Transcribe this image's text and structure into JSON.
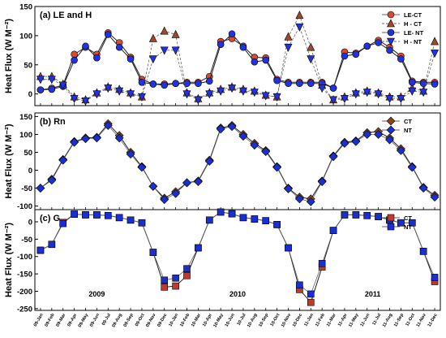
{
  "figure": {
    "year_labels": [
      "2009",
      "2010",
      "2011"
    ],
    "x_tick_labels": [
      "09-Jan",
      "09-Feb",
      "09-Mar",
      "09-Apr",
      "09-May",
      "09-Jun",
      "09-Jul",
      "09-Aug",
      "09-Sep",
      "09-Oct",
      "09-Nov",
      "09-Dec",
      "10-Jan",
      "10-Feb",
      "10-Mar",
      "10-Apr",
      "10-May",
      "10-Jun",
      "10-Jul",
      "10-Aug",
      "10-Sep",
      "10-Oct",
      "10-Nov",
      "10-Dec",
      "11-Jan",
      "11-Feb",
      "11-Mar",
      "11-Apr",
      "11-May",
      "11-Jun",
      "11-Jul",
      "11-Aug",
      "11-Sep",
      "11-Oct",
      "11-Nov",
      "11-Dec"
    ]
  },
  "chart_data": [
    {
      "type": "line",
      "panel_label": "(a) LE and H",
      "ylabel": "Heat Flux (W M⁻²)",
      "ylim": [
        -20,
        150
      ],
      "yticks": [
        0,
        50,
        100,
        150
      ],
      "legend_position": "top-right",
      "series": [
        {
          "name": "LE-CT",
          "marker": "circle",
          "color": "#c0392b",
          "values": [
            7,
            10,
            15,
            68,
            80,
            68,
            105,
            88,
            63,
            25,
            17,
            17,
            18,
            20,
            20,
            30,
            90,
            95,
            82,
            63,
            62,
            25,
            20,
            20,
            20,
            20,
            10,
            72,
            70,
            82,
            92,
            80,
            65,
            22,
            20,
            20
          ]
        },
        {
          "name": "H - CT",
          "marker": "triangle-up",
          "color": "#8b3a2a",
          "values": [
            30,
            30,
            17,
            -5,
            -10,
            2,
            12,
            8,
            2,
            -5,
            95,
            108,
            102,
            2,
            -8,
            2,
            8,
            12,
            8,
            5,
            -2,
            -5,
            98,
            135,
            80,
            15,
            -10,
            -5,
            2,
            5,
            2,
            -5,
            -5,
            10,
            5,
            90
          ]
        },
        {
          "name": "LE- NT",
          "marker": "circle",
          "color": "#1a2fd1",
          "values": [
            7,
            8,
            13,
            58,
            82,
            62,
            102,
            80,
            60,
            20,
            17,
            15,
            18,
            18,
            18,
            22,
            85,
            103,
            80,
            55,
            58,
            23,
            18,
            18,
            18,
            18,
            10,
            65,
            68,
            82,
            88,
            75,
            60,
            20,
            18,
            17
          ]
        },
        {
          "name": "H - NT",
          "marker": "triangle-down",
          "color": "#1a2fd1",
          "values": [
            25,
            25,
            15,
            -8,
            -12,
            0,
            10,
            5,
            0,
            -5,
            60,
            75,
            75,
            0,
            -10,
            0,
            5,
            10,
            5,
            3,
            -3,
            -5,
            80,
            115,
            60,
            10,
            -10,
            -8,
            0,
            3,
            0,
            -8,
            -8,
            5,
            3,
            70
          ]
        }
      ]
    },
    {
      "type": "line",
      "panel_label": "(b) Rn",
      "ylabel": "Heat Flux (W M⁻²)",
      "ylim": [
        -110,
        160
      ],
      "yticks": [
        -100,
        -50,
        0,
        50,
        100,
        150
      ],
      "legend_position": "top-right",
      "series": [
        {
          "name": "CT",
          "marker": "diamond",
          "color": "#8b4513",
          "values": [
            -50,
            -25,
            30,
            80,
            90,
            92,
            130,
            97,
            50,
            10,
            -45,
            -78,
            -60,
            -35,
            -30,
            28,
            118,
            125,
            100,
            75,
            55,
            10,
            -50,
            -75,
            -80,
            -30,
            40,
            78,
            82,
            105,
            108,
            90,
            60,
            10,
            -48,
            -70
          ]
        },
        {
          "name": "NT",
          "marker": "diamond",
          "color": "#1a2fd1",
          "values": [
            -50,
            -28,
            28,
            78,
            88,
            90,
            125,
            90,
            45,
            8,
            -45,
            -82,
            -65,
            -35,
            -32,
            25,
            115,
            122,
            95,
            70,
            52,
            8,
            -52,
            -80,
            -88,
            -32,
            38,
            75,
            80,
            100,
            100,
            85,
            55,
            8,
            -50,
            -75
          ]
        }
      ]
    },
    {
      "type": "line",
      "panel_label": "(c) G",
      "ylabel": "Heat Flux (W M⁻²)",
      "ylim": [
        -255,
        35
      ],
      "yticks": [
        -250,
        -200,
        -150,
        -100,
        -50,
        0
      ],
      "legend_position": "top-right",
      "series": [
        {
          "name": "CT",
          "marker": "square",
          "color": "#c0392b",
          "values": [
            -82,
            -65,
            -2,
            22,
            20,
            20,
            18,
            12,
            5,
            -3,
            -88,
            -188,
            -185,
            -155,
            -75,
            5,
            28,
            23,
            12,
            8,
            3,
            -8,
            -75,
            -195,
            -232,
            -130,
            -25,
            20,
            20,
            18,
            15,
            5,
            -3,
            -3,
            -85,
            -172
          ]
        },
        {
          "name": "NT",
          "marker": "square",
          "color": "#1a2fd1",
          "values": [
            -82,
            -65,
            -5,
            22,
            20,
            20,
            18,
            12,
            5,
            -3,
            -88,
            -168,
            -162,
            -135,
            -75,
            5,
            28,
            23,
            12,
            8,
            3,
            -8,
            -75,
            -182,
            -208,
            -120,
            -25,
            20,
            20,
            18,
            15,
            5,
            -3,
            -3,
            -85,
            -160
          ]
        }
      ]
    }
  ]
}
